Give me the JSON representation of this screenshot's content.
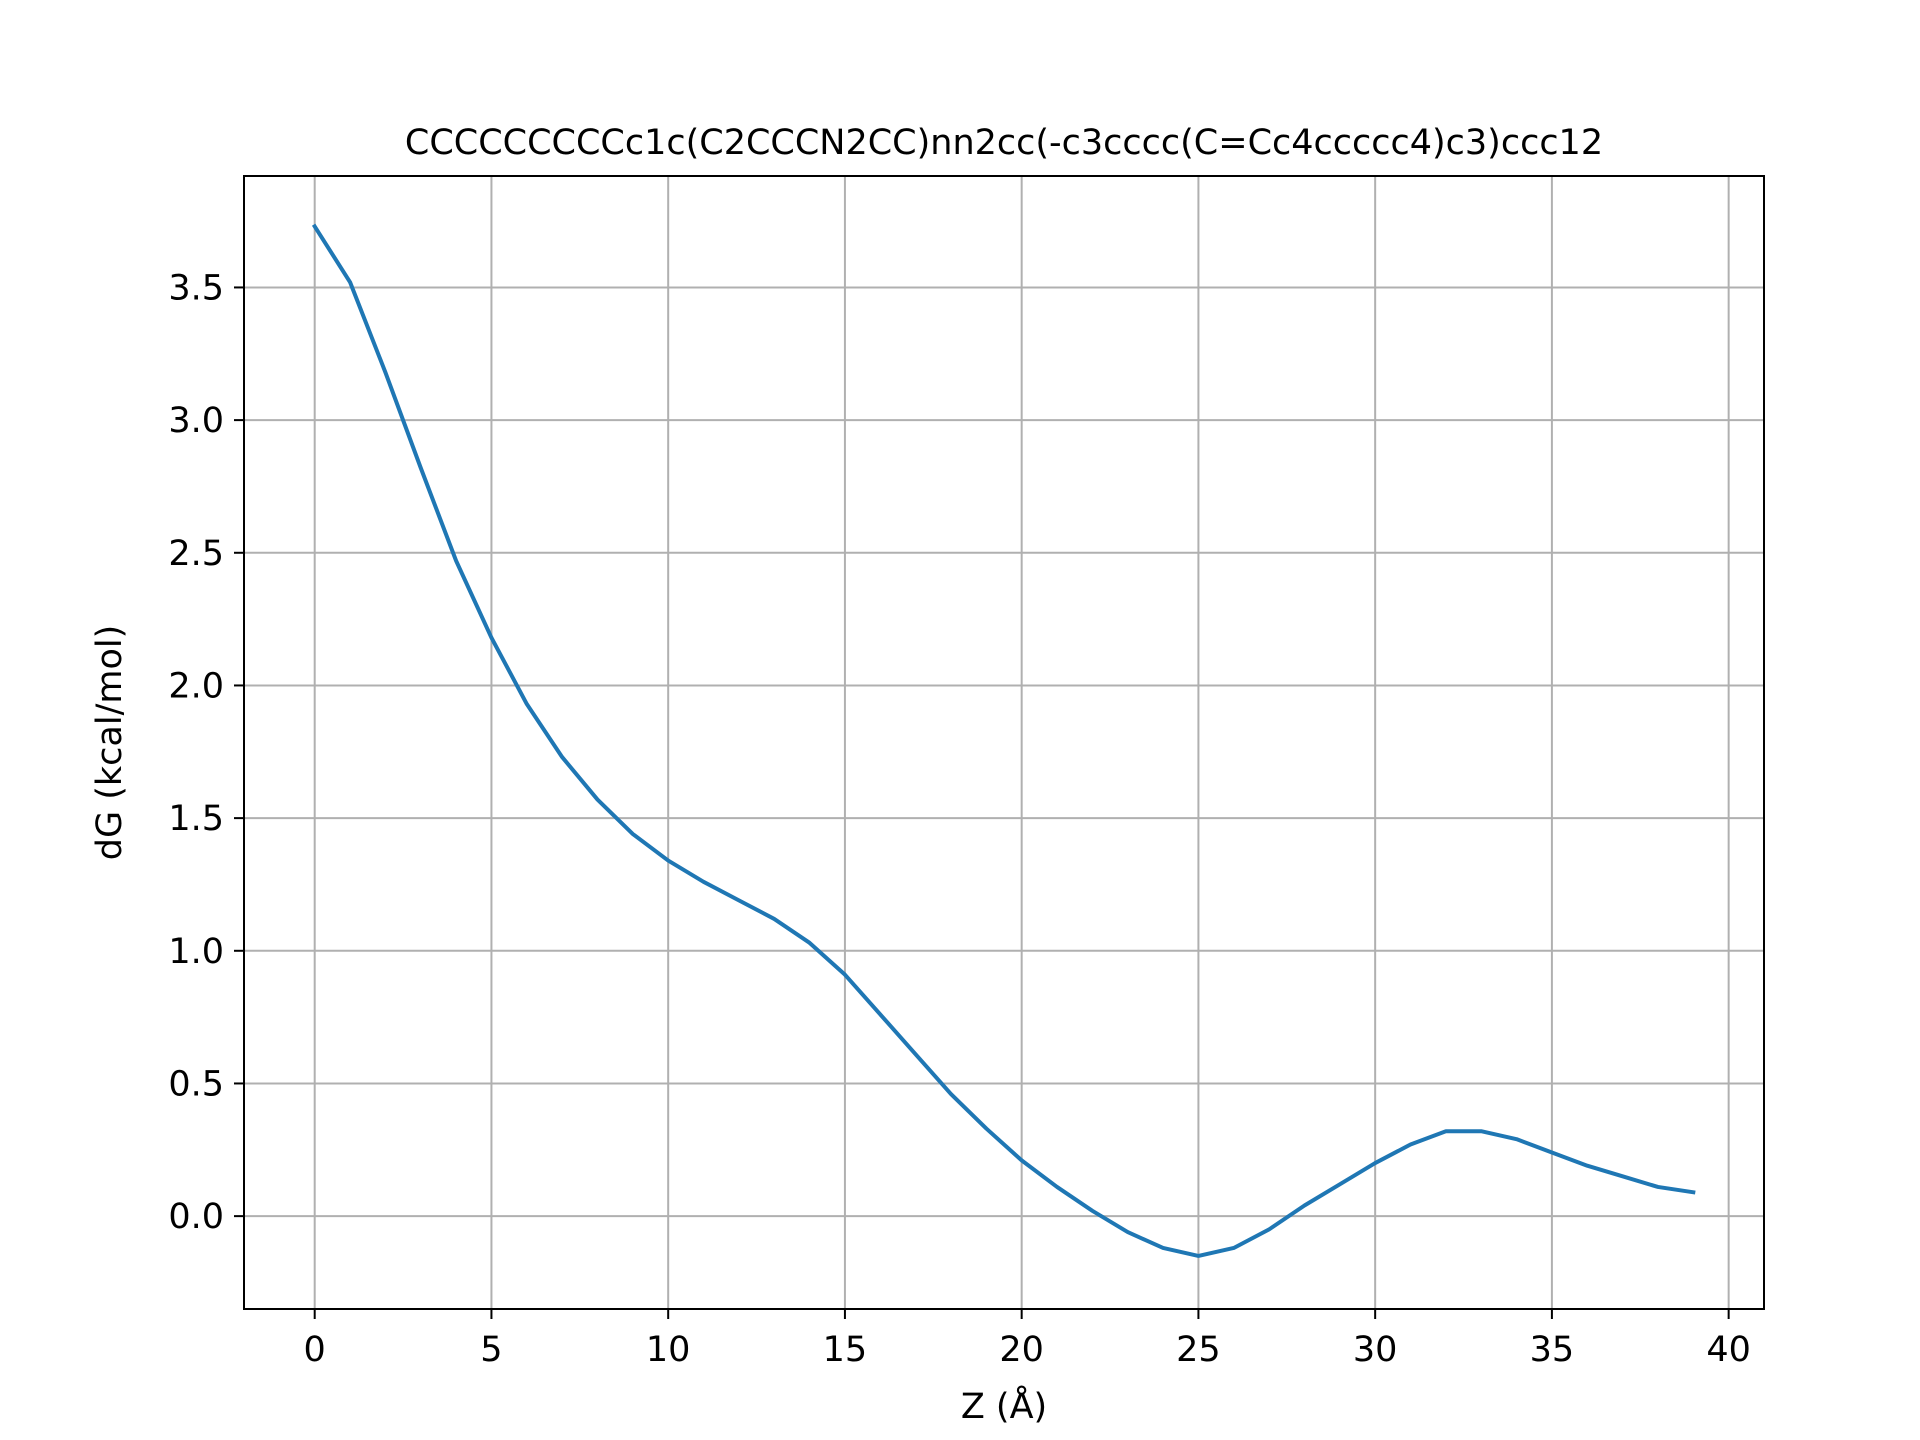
{
  "chart_data": {
    "type": "line",
    "title": "CCCCCCCCCc1c(C2CCCN2CC)nn2cc(-c3cccc(C=Cc4ccccc4)c3)ccc12",
    "xlabel": "Z (Å)",
    "ylabel": "dG (kcal/mol)",
    "xlim": [
      -2,
      41
    ],
    "ylim": [
      -0.35,
      3.92
    ],
    "xticks": [
      0,
      5,
      10,
      15,
      20,
      25,
      30,
      35,
      40
    ],
    "xtick_labels": [
      "0",
      "5",
      "10",
      "15",
      "20",
      "25",
      "30",
      "35",
      "40"
    ],
    "yticks": [
      0.0,
      0.5,
      1.0,
      1.5,
      2.0,
      2.5,
      3.0,
      3.5
    ],
    "ytick_labels": [
      "0.0",
      "0.5",
      "1.0",
      "1.5",
      "2.0",
      "2.5",
      "3.0",
      "3.5"
    ],
    "grid": true,
    "series": [
      {
        "color": "#1f77b4",
        "x": [
          0,
          1,
          2,
          3,
          4,
          5,
          6,
          7,
          8,
          9,
          10,
          11,
          12,
          13,
          14,
          15,
          16,
          17,
          18,
          19,
          20,
          21,
          22,
          23,
          24,
          25,
          26,
          27,
          28,
          29,
          30,
          31,
          32,
          33,
          34,
          35,
          36,
          37,
          38,
          39
        ],
        "y": [
          3.73,
          3.52,
          3.18,
          2.82,
          2.47,
          2.18,
          1.93,
          1.73,
          1.57,
          1.44,
          1.34,
          1.26,
          1.19,
          1.12,
          1.03,
          0.91,
          0.76,
          0.61,
          0.46,
          0.33,
          0.21,
          0.11,
          0.02,
          -0.06,
          -0.12,
          -0.15,
          -0.12,
          -0.05,
          0.04,
          0.12,
          0.2,
          0.27,
          0.32,
          0.32,
          0.29,
          0.24,
          0.19,
          0.15,
          0.11,
          0.09
        ]
      }
    ]
  }
}
